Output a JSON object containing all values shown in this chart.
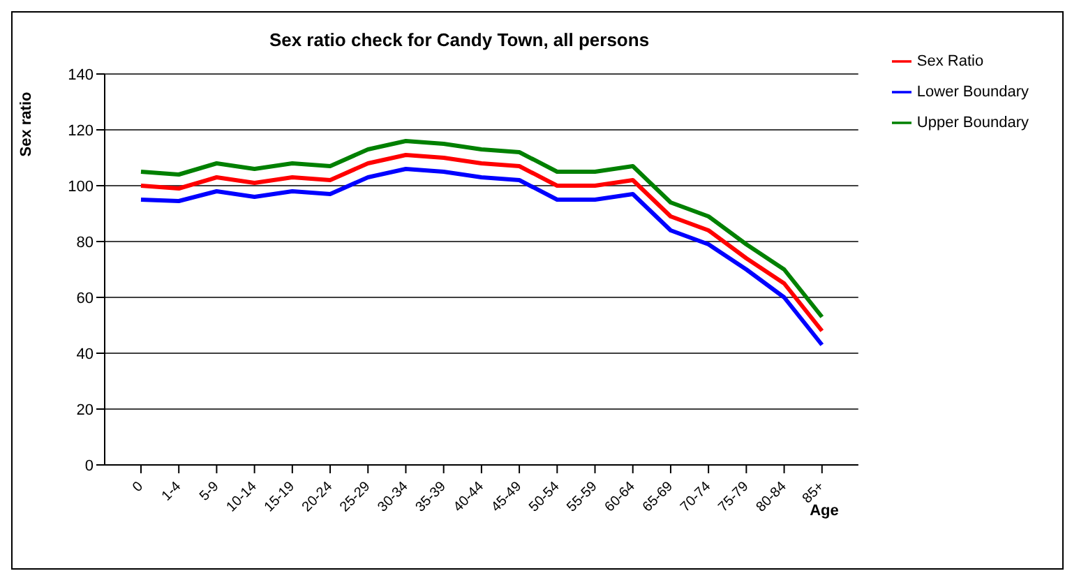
{
  "chart_data": {
    "type": "line",
    "title": "Sex ratio check for Candy Town, all persons",
    "xlabel": "Age",
    "ylabel": "Sex ratio",
    "categories": [
      "0",
      "1-4",
      "5-9",
      "10-14",
      "15-19",
      "20-24",
      "25-29",
      "30-34",
      "35-39",
      "40-44",
      "45-49",
      "50-54",
      "55-59",
      "60-64",
      "65-69",
      "70-74",
      "75-79",
      "80-84",
      "85+"
    ],
    "series": [
      {
        "name": "Sex Ratio",
        "color": "#ff0000",
        "values": [
          100,
          99,
          103,
          101,
          103,
          102,
          108,
          111,
          110,
          108,
          107,
          100,
          100,
          102,
          89,
          84,
          74,
          65,
          48
        ]
      },
      {
        "name": "Lower Boundary",
        "color": "#0000ff",
        "values": [
          95,
          94.5,
          98,
          96,
          98,
          97,
          103,
          106,
          105,
          103,
          102,
          95,
          95,
          97,
          84,
          79,
          70,
          60,
          43
        ]
      },
      {
        "name": "Upper Boundary",
        "color": "#008000",
        "values": [
          105,
          104,
          108,
          106,
          108,
          107,
          113,
          116,
          115,
          113,
          112,
          105,
          105,
          107,
          94,
          89,
          79,
          70,
          53
        ]
      }
    ],
    "ylim": [
      0,
      140
    ],
    "yticks": [
      0,
      20,
      40,
      60,
      80,
      100,
      120,
      140
    ],
    "grid": "y",
    "legend": "top right",
    "marker": "none",
    "line_style": "solid"
  }
}
